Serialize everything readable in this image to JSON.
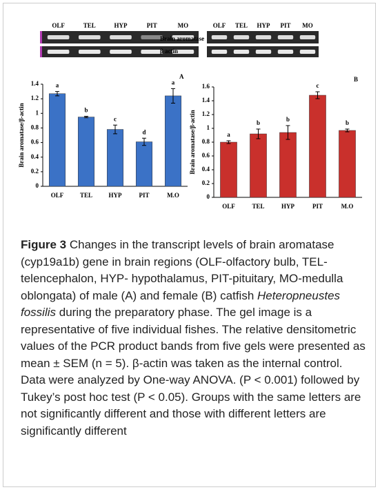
{
  "gels": {
    "lanes": [
      "OLF",
      "TEL",
      "HYP",
      "PIT",
      "MO"
    ],
    "rows": [
      "Brain aromatase",
      "β actin"
    ]
  },
  "chart_data": [
    {
      "type": "bar",
      "panel": "A",
      "ylabel": "Brain aromatase/β-actin",
      "categories": [
        "OLF",
        "TEL",
        "HYP",
        "PIT",
        "M.O"
      ],
      "values": [
        1.27,
        0.95,
        0.78,
        0.61,
        1.24
      ],
      "errors": [
        0.03,
        0.01,
        0.06,
        0.05,
        0.1
      ],
      "letters": [
        "a",
        "b",
        "c",
        "d",
        "a"
      ],
      "color": "#3b72c6",
      "ylim": [
        0,
        1.4
      ],
      "yticks": [
        0,
        0.2,
        0.4,
        0.6,
        0.8,
        1,
        1.2,
        1.4
      ]
    },
    {
      "type": "bar",
      "panel": "B",
      "ylabel": "Brain aromatase/β-actin",
      "categories": [
        "OLF",
        "TEL",
        "HYP",
        "PIT",
        "M.O"
      ],
      "values": [
        0.8,
        0.92,
        0.94,
        1.48,
        0.97
      ],
      "errors": [
        0.02,
        0.07,
        0.1,
        0.05,
        0.02
      ],
      "letters": [
        "a",
        "b",
        "b",
        "c",
        "b"
      ],
      "color": "#c9302c",
      "ylim": [
        0,
        1.6
      ],
      "yticks": [
        0,
        0.2,
        0.4,
        0.6,
        0.8,
        1,
        1.2,
        1.4,
        1.6
      ]
    }
  ],
  "caption": {
    "label": "Figure 3",
    "text_before": " Changes in the transcript levels of brain aromatase (cyp19a1b) gene in brain regions (OLF-olfactory bulb, TEL-telencephalon, HYP- hypothalamus, PIT-pituitary, MO-medulla oblongata) of male (A) and female (B) catfish ",
    "italic": "Heteropneustes fossilis",
    "text_after": " during the preparatory phase. The gel image is a representative of five individual fishes. The relative densitometric values of the PCR product bands from five gels were presented as mean ± SEM (n = 5). β-actin was taken as the internal control. Data were analyzed by One-way ANOVA. (P < 0.001) followed by Tukey’s post hoc test (P < 0.05). Groups with the same letters are not significantly different and those with different letters are significantly different"
  }
}
